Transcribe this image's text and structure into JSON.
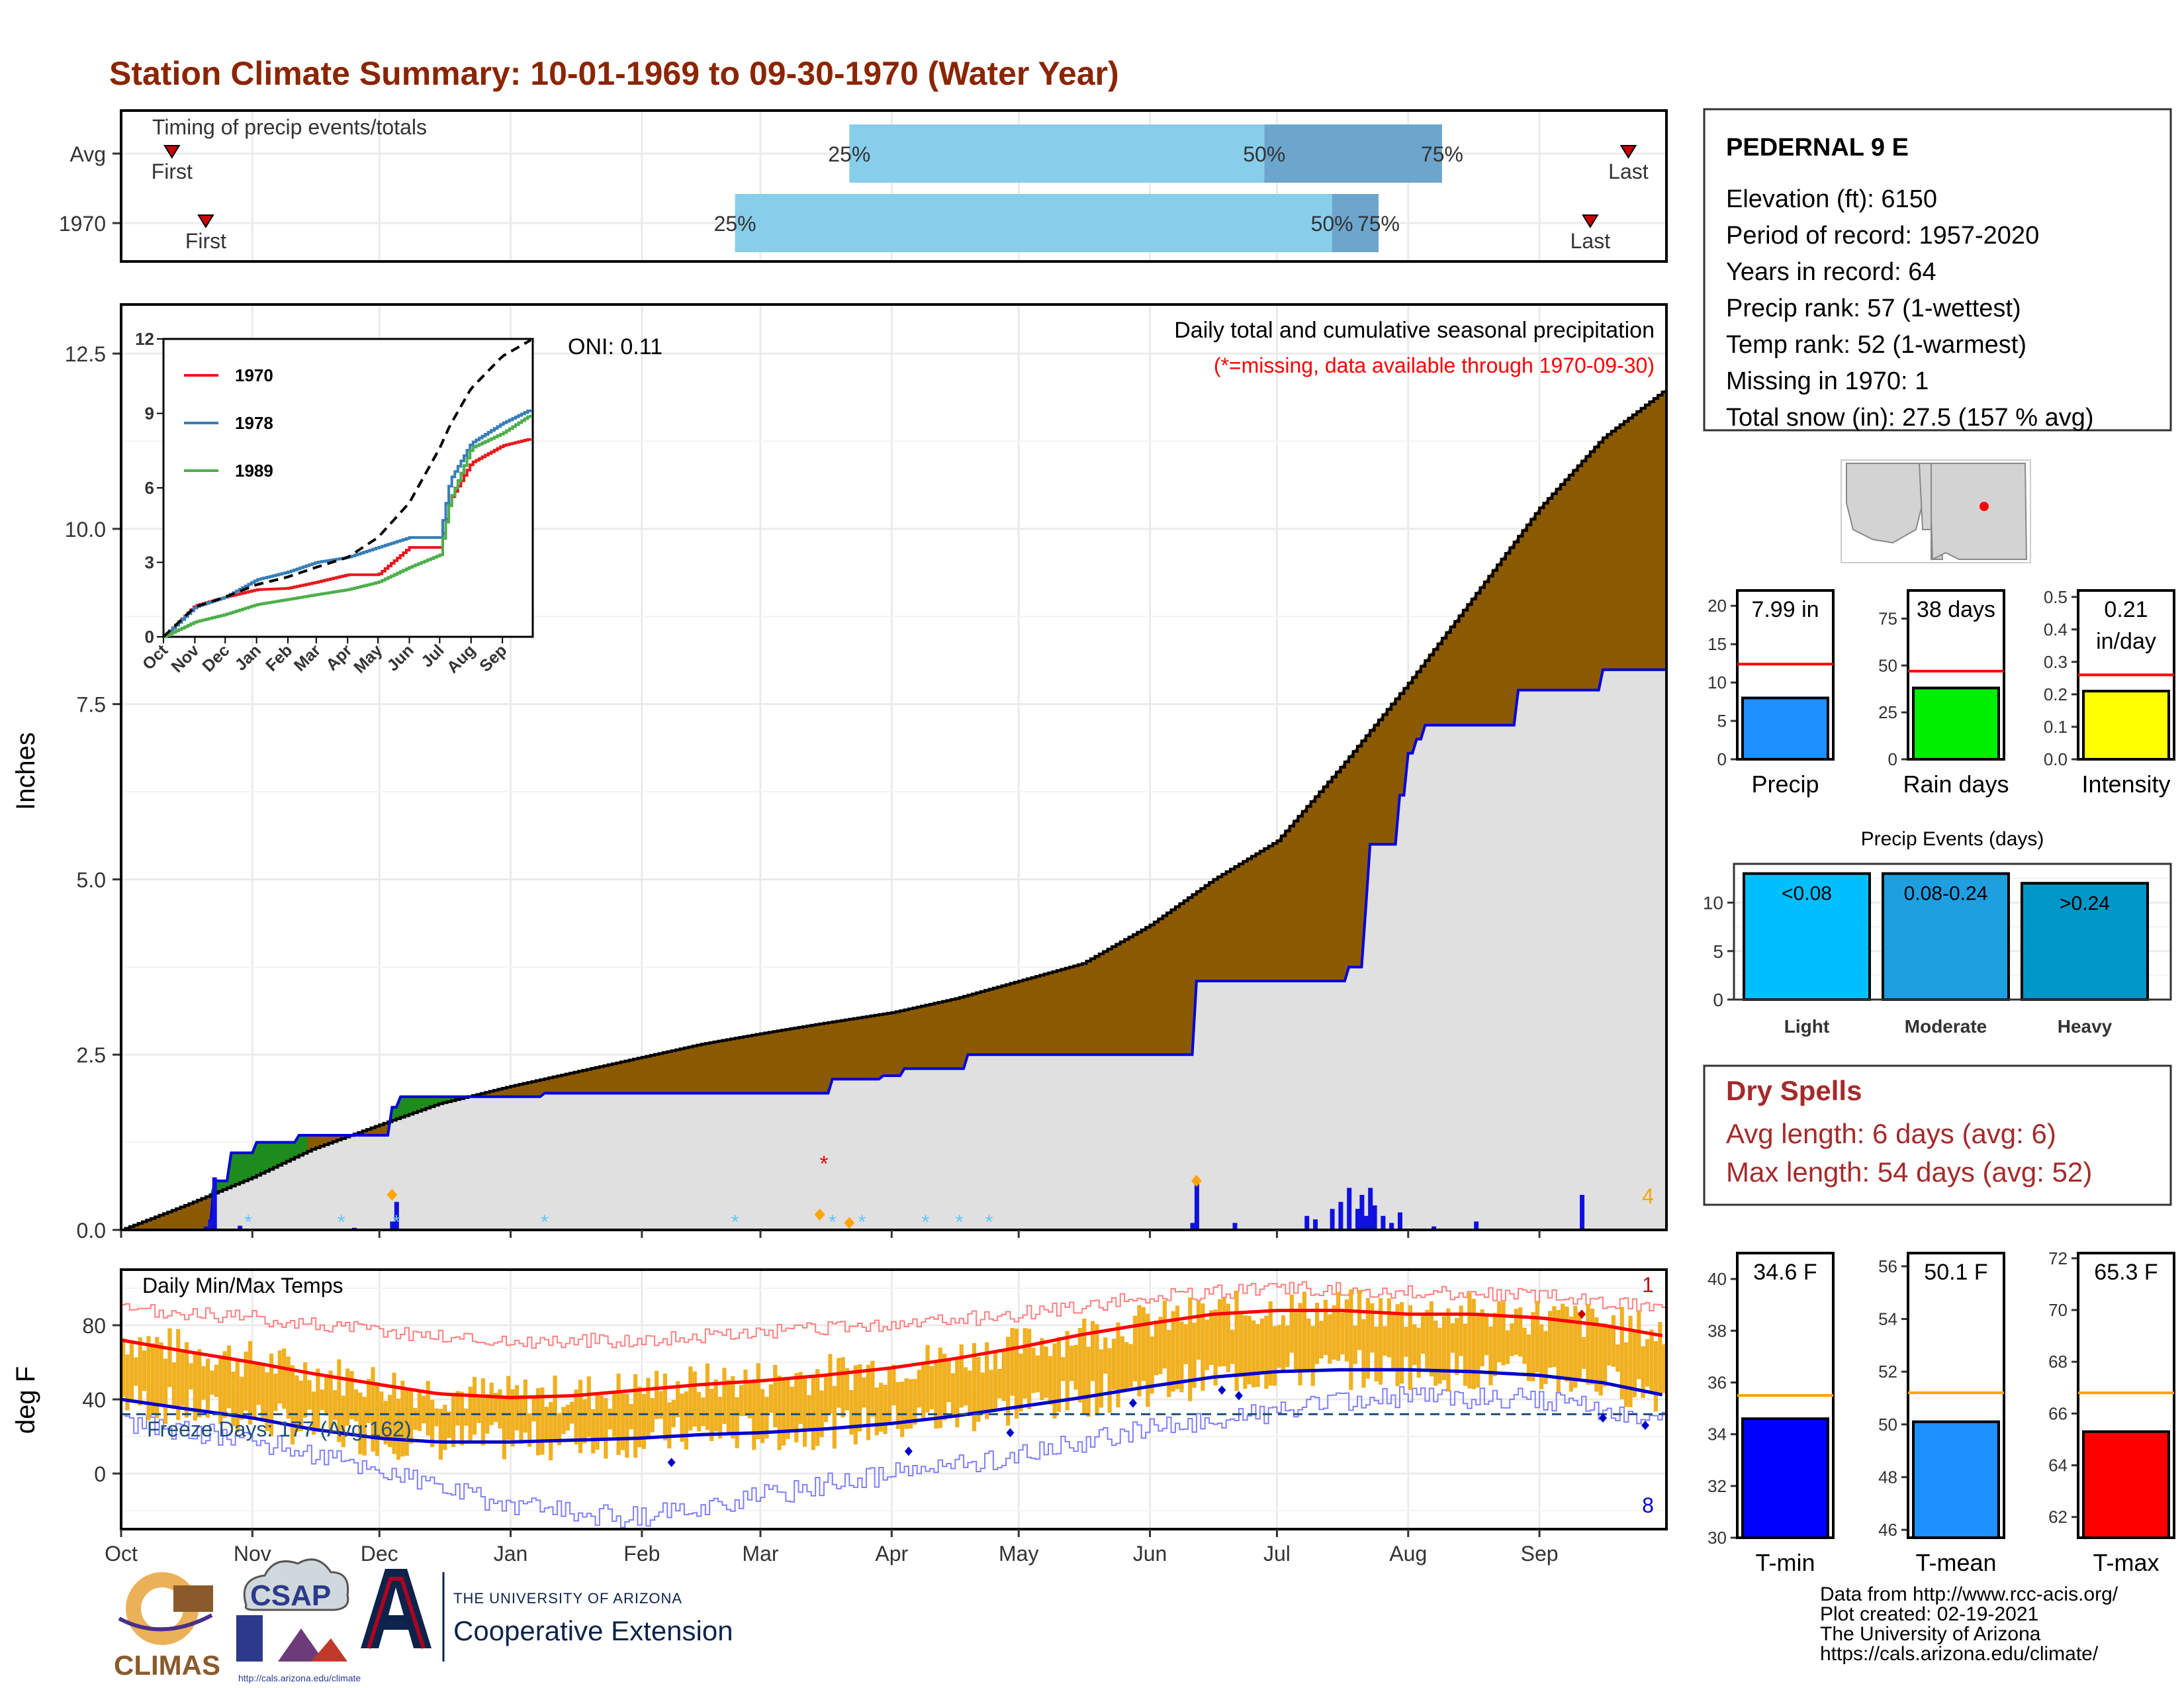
{
  "title": "Station Climate Summary: 10-01-1969 to 09-30-1970 (Water Year)",
  "timing": {
    "title": "Timing of precip events/totals",
    "rows": [
      {
        "label": "Avg",
        "first_label": "First",
        "last_label": "Last",
        "first_doy": 12,
        "last_doy": 356,
        "q25_doy": 172,
        "q50_doy": 270,
        "q75_doy": 312,
        "q25_label": "25%",
        "q50_label": "50%",
        "q75_label": "75%"
      },
      {
        "label": "1970",
        "first_label": "First",
        "last_label": "Last",
        "first_doy": 20,
        "last_doy": 347,
        "q25_doy": 145,
        "q50_doy": 286,
        "q75_doy": 297,
        "q25_label": "25%",
        "q50_label": "50%",
        "q75_label": "75%"
      }
    ]
  },
  "main": {
    "ylabel": "Inches",
    "subtitle": "Daily total and cumulative seasonal precipitation",
    "missing_note": "(*=missing, data available through 1970-09-30)",
    "oni": "ONI: 0.11",
    "snow_count": "4",
    "yticks": [
      "0.0",
      "2.5",
      "5.0",
      "7.5",
      "10.0",
      "12.5"
    ],
    "months": [
      "Oct",
      "Nov",
      "Dec",
      "Jan",
      "Feb",
      "Mar",
      "Apr",
      "May",
      "Jun",
      "Jul",
      "Aug",
      "Sep"
    ]
  },
  "inset": {
    "yticks": [
      "0",
      "3",
      "6",
      "9",
      "12"
    ],
    "months": [
      "Oct",
      "Nov",
      "Dec",
      "Jan",
      "Feb",
      "Mar",
      "Apr",
      "May",
      "Jun",
      "Jul",
      "Aug",
      "Sep"
    ],
    "legend": [
      {
        "name": "1970",
        "color": "#E41A1C"
      },
      {
        "name": "1978",
        "color": "#377EB8"
      },
      {
        "name": "1989",
        "color": "#4DAF4A"
      }
    ]
  },
  "temps": {
    "ylabel": "deg F",
    "title": "Daily Min/Max Temps",
    "freeze_label": "Freeze Days: 177 (Avg:162)",
    "record_high_count": "1",
    "record_low_count": "8",
    "yticks": [
      "0",
      "40",
      "80"
    ]
  },
  "station": {
    "name": "PEDERNAL 9 E",
    "lines": [
      "Elevation (ft): 6150",
      "Period of record: 1957-2020",
      "Years in record: 64",
      "Precip rank: 57 (1-wettest)",
      "Temp rank: 52 (1-warmest)",
      "Missing in 1970: 1",
      "Total snow (in): 27.5 (157 % avg)"
    ]
  },
  "summary_bars": [
    {
      "label": "Precip",
      "value_text": "7.99 in",
      "value": 7.99,
      "avg": 12.4,
      "ymin": 0,
      "ymax": 22,
      "ticks": [
        "0",
        "5",
        "10",
        "15",
        "20"
      ],
      "color": "#1E90FF"
    },
    {
      "label": "Rain days",
      "value_text": "38 days",
      "value": 38,
      "avg": 47,
      "ymin": 0,
      "ymax": 90,
      "ticks": [
        "0",
        "25",
        "50",
        "75"
      ],
      "color": "#00EE00"
    },
    {
      "label": "Intensity",
      "value_text": "0.21",
      "value_text2": "in/day",
      "value": 0.21,
      "avg": 0.26,
      "ymin": 0,
      "ymax": 0.52,
      "ticks": [
        "0.0",
        "0.1",
        "0.2",
        "0.3",
        "0.4",
        "0.5"
      ],
      "color": "#FFFF00"
    }
  ],
  "events": {
    "title": "Precip Events (days)",
    "ticks": [
      "0",
      "5",
      "10"
    ],
    "categories": [
      "Light",
      "Moderate",
      "Heavy"
    ],
    "labels": [
      "<0.08",
      "0.08-0.24",
      ">0.24"
    ],
    "values": [
      13,
      13,
      12
    ],
    "colors": [
      "#00BFFF",
      "#1E9FE0",
      "#0096C7"
    ]
  },
  "dry_spells": {
    "title": "Dry Spells",
    "avg_line": "Avg length: 6 days (avg: 6)",
    "max_line": "Max length: 54 days (avg: 52)"
  },
  "temp_bars": [
    {
      "label": "T-min",
      "value_text": "34.6 F",
      "value": 34.6,
      "avg": 35.5,
      "ymin": 30,
      "ymax": 41,
      "ticks": [
        "30",
        "32",
        "34",
        "36",
        "38",
        "40"
      ],
      "color": "#0000FF"
    },
    {
      "label": "T-mean",
      "value_text": "50.1 F",
      "value": 50.1,
      "avg": 51.2,
      "ymin": 45.7,
      "ymax": 56.5,
      "ticks": [
        "46",
        "48",
        "50",
        "52",
        "54",
        "56"
      ],
      "color": "#1E90FF"
    },
    {
      "label": "T-max",
      "value_text": "65.3 F",
      "value": 65.3,
      "avg": 66.8,
      "ymin": 61.2,
      "ymax": 72.2,
      "ticks": [
        "62",
        "64",
        "66",
        "68",
        "70",
        "72"
      ],
      "color": "#FF0000"
    }
  ],
  "footer": {
    "lines": [
      "Data from http://www.rcc-acis.org/",
      "Plot created: 02-19-2021",
      "The University of Arizona",
      "https://cals.arizona.edu/climate/"
    ],
    "logo_climas": "CLIMAS",
    "logo_csap": "CSAP",
    "logo_csap_url": "http://cals.arizona.edu/climate",
    "ua_small": "THE UNIVERSITY OF ARIZONA",
    "ua_big": "Cooperative Extension"
  },
  "chart_data": [
    {
      "type": "area",
      "title": "Daily total and cumulative seasonal precipitation",
      "ylabel": "Inches",
      "ylim": [
        0,
        13.2
      ],
      "x_unit": "day of water year",
      "series": [
        {
          "name": "Avg cumulative",
          "x": [
            0,
            15,
            31,
            45,
            61,
            75,
            92,
            107,
            122,
            137,
            151,
            166,
            182,
            197,
            212,
            227,
            243,
            258,
            273,
            288,
            304,
            319,
            335,
            350,
            365
          ],
          "values": [
            0,
            0.35,
            0.75,
            1.15,
            1.5,
            1.8,
            2.05,
            2.25,
            2.45,
            2.65,
            2.8,
            2.95,
            3.1,
            3.3,
            3.55,
            3.8,
            4.35,
            5.0,
            5.55,
            6.6,
            7.8,
            9.0,
            10.3,
            11.3,
            12.0
          ]
        },
        {
          "name": "1970 cumulative",
          "x": [
            0,
            20,
            22,
            26,
            32,
            42,
            55,
            59,
            64,
            66,
            80,
            90,
            100,
            130,
            165,
            168,
            180,
            185,
            200,
            210,
            228,
            246,
            253,
            254,
            270,
            280,
            290,
            294,
            295,
            302,
            304,
            306,
            308,
            330,
            350,
            365
          ],
          "values": [
            0,
            0,
            0.7,
            1.1,
            1.25,
            1.35,
            1.35,
            1.35,
            1.75,
            1.9,
            1.9,
            1.9,
            1.95,
            1.95,
            1.95,
            2.15,
            2.2,
            2.3,
            2.5,
            2.5,
            2.5,
            2.5,
            2.5,
            3.55,
            3.55,
            3.55,
            3.75,
            4.6,
            5.5,
            6.2,
            6.8,
            7.0,
            7.2,
            7.7,
            7.99,
            7.99
          ]
        },
        {
          "name": "Daily precip",
          "x": [
            20,
            21,
            22,
            28,
            55,
            64,
            65,
            253,
            254,
            263,
            280,
            282,
            286,
            288,
            290,
            292,
            293,
            294,
            295,
            296,
            298,
            300,
            302,
            310,
            320,
            345
          ],
          "values": [
            0.05,
            0.15,
            0.75,
            0.06,
            0.03,
            0.12,
            0.4,
            0.1,
            0.7,
            0.1,
            0.2,
            0.15,
            0.3,
            0.4,
            0.6,
            0.3,
            0.5,
            0.2,
            0.6,
            0.35,
            0.2,
            0.1,
            0.25,
            0.05,
            0.12,
            0.5
          ]
        }
      ]
    },
    {
      "type": "line",
      "title": "Cumulative precipitation analog years",
      "ylim": [
        0,
        12
      ],
      "x_unit": "day of water year",
      "series": [
        {
          "name": "1970",
          "x": [
            0,
            31,
            61,
            92,
            122,
            151,
            182,
            212,
            243,
            273,
            283,
            304,
            335,
            365
          ],
          "values": [
            0,
            1.25,
            1.6,
            1.9,
            1.95,
            2.2,
            2.5,
            2.5,
            3.6,
            3.6,
            5.5,
            7.0,
            7.7,
            8.0
          ]
        },
        {
          "name": "1978",
          "x": [
            0,
            31,
            61,
            92,
            122,
            151,
            182,
            212,
            243,
            273,
            283,
            304,
            335,
            365
          ],
          "values": [
            0,
            1.2,
            1.6,
            2.3,
            2.6,
            3.0,
            3.2,
            3.6,
            4.0,
            4.0,
            6.3,
            7.8,
            8.6,
            9.2
          ]
        },
        {
          "name": "1989",
          "x": [
            0,
            31,
            61,
            92,
            122,
            151,
            182,
            212,
            243,
            273,
            283,
            304,
            335,
            365
          ],
          "values": [
            0,
            0.6,
            0.9,
            1.3,
            1.5,
            1.7,
            1.9,
            2.2,
            2.8,
            3.3,
            5.5,
            7.6,
            8.2,
            9.0
          ]
        },
        {
          "values": [
            0,
            1.2,
            1.6,
            2.1,
            2.4,
            2.8,
            3.2,
            4.0,
            5.4,
            7.6,
            8.5,
            10.0,
            11.3,
            12.0
          ],
          "x": [
            0,
            31,
            61,
            92,
            122,
            151,
            182,
            212,
            243,
            273,
            283,
            304,
            335,
            365
          ]
        }
      ]
    },
    {
      "type": "line",
      "title": "Daily Min/Max Temps",
      "ylabel": "deg F",
      "ylim": [
        -30,
        110
      ],
      "x_unit": "day of water year",
      "freeze_threshold": 32,
      "series": [
        {
          "name": "Avg max",
          "x": [
            0,
            15,
            31,
            45,
            61,
            75,
            92,
            107,
            122,
            137,
            151,
            166,
            182,
            197,
            212,
            227,
            243,
            258,
            273,
            288,
            304,
            319,
            335,
            350,
            365
          ],
          "values": [
            72,
            66,
            60,
            54,
            48,
            43,
            41,
            42,
            45,
            48,
            50,
            53,
            57,
            62,
            68,
            75,
            81,
            86,
            88,
            88,
            86,
            86,
            84,
            80,
            74
          ]
        },
        {
          "name": "Avg min",
          "x": [
            0,
            15,
            31,
            45,
            61,
            75,
            92,
            107,
            122,
            137,
            151,
            166,
            182,
            197,
            212,
            227,
            243,
            258,
            273,
            288,
            304,
            319,
            335,
            350,
            365
          ],
          "values": [
            40,
            35,
            30,
            24,
            19,
            17,
            17,
            18,
            19,
            21,
            22,
            24,
            27,
            31,
            36,
            41,
            47,
            52,
            55,
            56,
            56,
            55,
            53,
            49,
            42
          ]
        },
        {
          "name": "Record high",
          "x": [
            0,
            31,
            61,
            92,
            122,
            151,
            182,
            212,
            243,
            273,
            304,
            335,
            365
          ],
          "values": [
            88,
            84,
            77,
            71,
            72,
            76,
            80,
            86,
            95,
            100,
            98,
            96,
            90
          ]
        },
        {
          "name": "Record low",
          "x": [
            0,
            31,
            61,
            92,
            122,
            151,
            182,
            212,
            243,
            273,
            304,
            335,
            365
          ],
          "values": [
            28,
            18,
            2,
            -18,
            -24,
            -12,
            0,
            10,
            24,
            34,
            42,
            40,
            28
          ]
        }
      ]
    },
    {
      "type": "bar",
      "title": "Precip Events (days)",
      "categories": [
        "Light",
        "Moderate",
        "Heavy"
      ],
      "values": [
        13,
        13,
        12
      ]
    }
  ]
}
